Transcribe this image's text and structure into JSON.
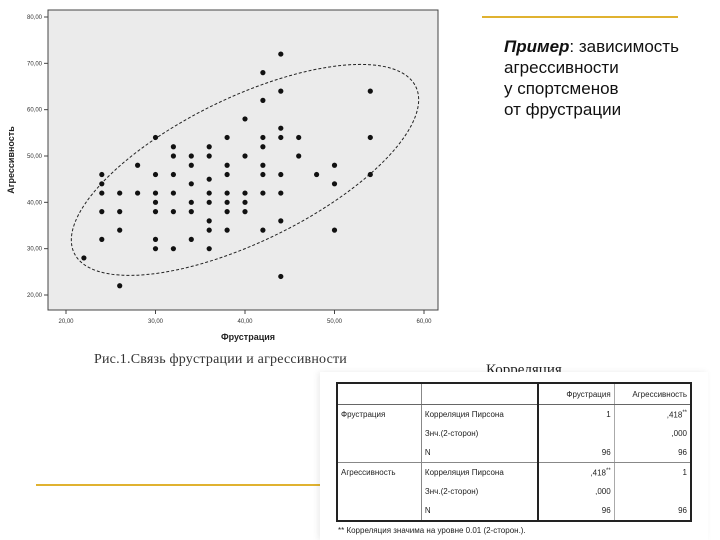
{
  "slide": {
    "heading_em": "Пример",
    "heading_rest": ": зависимость",
    "heading_lines": [
      "агрессивности",
      "у спортсменов",
      "от фрустрации"
    ],
    "figure_caption": "Рис.1.Связь фрустрации и агрессивности",
    "accent_color": "#e0b230"
  },
  "chart_data": {
    "type": "scatter",
    "xlabel": "Фрустрация",
    "ylabel": "Агрессивность",
    "xlim": [
      20,
      60
    ],
    "ylim": [
      20,
      80
    ],
    "x_ticks": [
      "20,00",
      "30,00",
      "40,00",
      "50,00",
      "60,00"
    ],
    "y_ticks": [
      "20,00",
      "30,00",
      "40,00",
      "50,00",
      "60,00",
      "70,00",
      "80,00"
    ],
    "grid": false,
    "plot_background": "#ebebeb",
    "point_color": "#111111",
    "ellipse": {
      "style": "dashed",
      "center": [
        40,
        47
      ],
      "note": "confidence ellipse around point cloud"
    },
    "points": [
      [
        22,
        28
      ],
      [
        24,
        46
      ],
      [
        24,
        44
      ],
      [
        24,
        42
      ],
      [
        24,
        38
      ],
      [
        24,
        32
      ],
      [
        26,
        22
      ],
      [
        26,
        34
      ],
      [
        26,
        38
      ],
      [
        26,
        42
      ],
      [
        28,
        42
      ],
      [
        28,
        48
      ],
      [
        30,
        54
      ],
      [
        30,
        46
      ],
      [
        30,
        42
      ],
      [
        30,
        40
      ],
      [
        30,
        38
      ],
      [
        30,
        32
      ],
      [
        30,
        30
      ],
      [
        32,
        50
      ],
      [
        32,
        52
      ],
      [
        32,
        46
      ],
      [
        32,
        42
      ],
      [
        32,
        38
      ],
      [
        32,
        30
      ],
      [
        34,
        50
      ],
      [
        34,
        48
      ],
      [
        34,
        44
      ],
      [
        34,
        40
      ],
      [
        34,
        38
      ],
      [
        34,
        32
      ],
      [
        36,
        52
      ],
      [
        36,
        50
      ],
      [
        36,
        45
      ],
      [
        36,
        42
      ],
      [
        36,
        40
      ],
      [
        36,
        36
      ],
      [
        36,
        34
      ],
      [
        36,
        30
      ],
      [
        38,
        54
      ],
      [
        38,
        48
      ],
      [
        38,
        46
      ],
      [
        38,
        42
      ],
      [
        38,
        40
      ],
      [
        38,
        38
      ],
      [
        38,
        34
      ],
      [
        40,
        58
      ],
      [
        40,
        50
      ],
      [
        40,
        42
      ],
      [
        40,
        40
      ],
      [
        40,
        38
      ],
      [
        42,
        68
      ],
      [
        42,
        62
      ],
      [
        42,
        54
      ],
      [
        42,
        52
      ],
      [
        42,
        48
      ],
      [
        42,
        46
      ],
      [
        42,
        42
      ],
      [
        42,
        34
      ],
      [
        44,
        72
      ],
      [
        44,
        64
      ],
      [
        44,
        56
      ],
      [
        44,
        54
      ],
      [
        44,
        46
      ],
      [
        44,
        42
      ],
      [
        44,
        36
      ],
      [
        44,
        24
      ],
      [
        46,
        54
      ],
      [
        46,
        50
      ],
      [
        48,
        46
      ],
      [
        50,
        48
      ],
      [
        50,
        44
      ],
      [
        50,
        34
      ],
      [
        54,
        64
      ],
      [
        54,
        54
      ],
      [
        54,
        46
      ]
    ]
  },
  "correlation": {
    "title": "Корреляция",
    "columns": [
      "Фрустрация",
      "Агрессивность"
    ],
    "rows": [
      {
        "variable": "Фрустрация",
        "label": "Корреляция Пирсона",
        "values": [
          "1",
          ",418"
        ],
        "marks": [
          "",
          "**"
        ]
      },
      {
        "variable": "",
        "label": "Знч.(2-сторон)",
        "values": [
          "",
          ",000"
        ],
        "marks": [
          "",
          ""
        ]
      },
      {
        "variable": "",
        "label": "N",
        "values": [
          "96",
          "96"
        ],
        "marks": [
          "",
          ""
        ]
      },
      {
        "variable": "Агрессивность",
        "label": "Корреляция Пирсона",
        "values": [
          ",418",
          "1"
        ],
        "marks": [
          "**",
          ""
        ]
      },
      {
        "variable": "",
        "label": "Знч.(2-сторон)",
        "values": [
          ",000",
          ""
        ],
        "marks": [
          "",
          ""
        ]
      },
      {
        "variable": "",
        "label": "N",
        "values": [
          "96",
          "96"
        ],
        "marks": [
          "",
          ""
        ]
      }
    ],
    "footnote": "** Корреляция значима на уровне 0.01 (2-сторон.)."
  }
}
